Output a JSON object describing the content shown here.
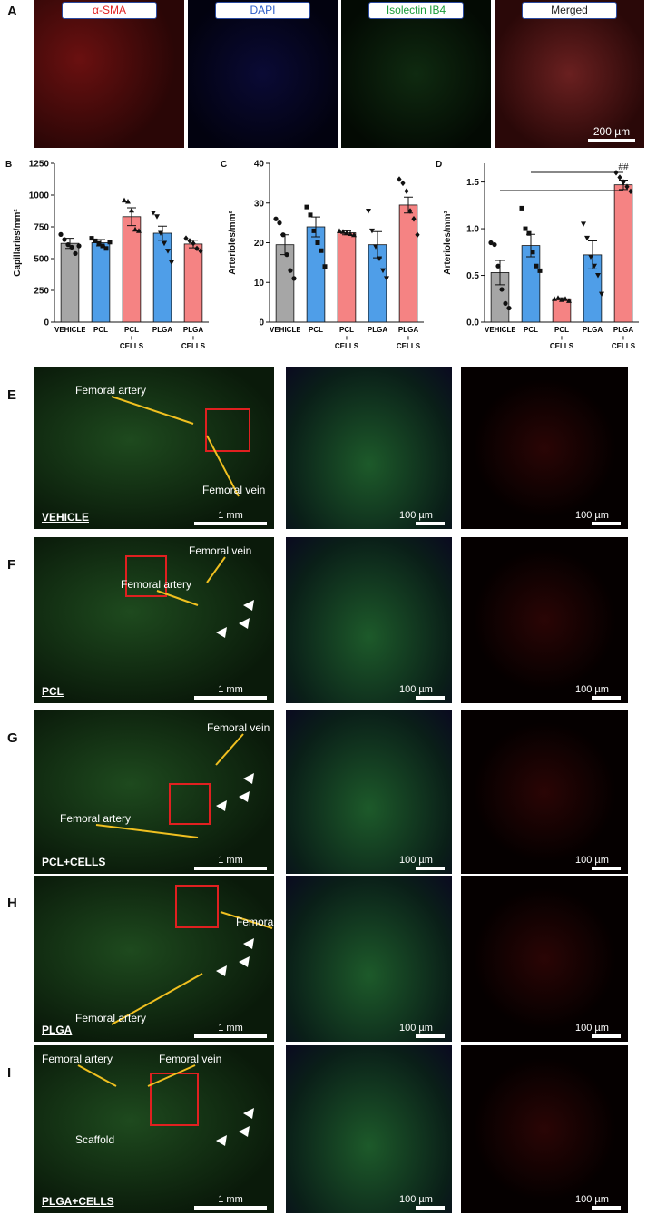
{
  "panel_a": {
    "letter": "A",
    "labels": [
      "α-SMA",
      "DAPI",
      "Isolectin IB4",
      "Merged"
    ],
    "label_colors": [
      "#e02020",
      "#2c5cc8",
      "#1a9c3a",
      "#222222"
    ],
    "scale_bar": "200 µm"
  },
  "chart_data": [
    {
      "type": "bar",
      "letter": "B",
      "y_label": "Capillaries/mm²",
      "categories": [
        "VEHICLE",
        "PCL",
        "PCL + CELLS",
        "PLGA",
        "PLGA + CELLS"
      ],
      "values": [
        620,
        625,
        830,
        700,
        615
      ],
      "errors": [
        40,
        25,
        70,
        55,
        30
      ],
      "points": [
        [
          690,
          650,
          610,
          590,
          540,
          600
        ],
        [
          660,
          640,
          620,
          600,
          580,
          630
        ],
        [
          960,
          950,
          880,
          730,
          720
        ],
        [
          860,
          830,
          700,
          620,
          560,
          470
        ],
        [
          660,
          640,
          620,
          580,
          560
        ]
      ],
      "colors": [
        "#a6a6a6",
        "#4f9ee8",
        "#f58383",
        "#4f9ee8",
        "#f58383"
      ],
      "ylim": [
        0,
        1250
      ],
      "yticks": [
        0,
        250,
        500,
        750,
        1000,
        1250
      ]
    },
    {
      "type": "bar",
      "letter": "C",
      "y_label": "Arterioles/mm²",
      "categories": [
        "VEHICLE",
        "PCL",
        "PCL + CELLS",
        "PLGA",
        "PLGA + CELLS"
      ],
      "values": [
        19.5,
        24,
        22.5,
        19.5,
        29.5
      ],
      "errors": [
        2.5,
        2.5,
        0.5,
        3.3,
        2
      ],
      "points": [
        [
          26,
          25,
          22,
          17,
          13,
          11
        ],
        [
          29,
          27,
          23,
          20,
          18,
          14
        ],
        [
          23,
          22.8,
          22.5,
          22.3,
          22
        ],
        [
          28,
          23,
          19,
          16,
          13,
          11
        ],
        [
          36,
          35,
          33,
          28,
          26,
          22
        ]
      ],
      "colors": [
        "#a6a6a6",
        "#4f9ee8",
        "#f58383",
        "#4f9ee8",
        "#f58383"
      ],
      "ylim": [
        0,
        40
      ],
      "yticks": [
        0,
        10,
        20,
        30,
        40
      ]
    },
    {
      "type": "bar",
      "letter": "D",
      "y_label": "Arterioles/mm²",
      "categories": [
        "VEHICLE",
        "PCL",
        "PCL + CELLS",
        "PLGA",
        "PLGA + CELLS"
      ],
      "values": [
        0.53,
        0.82,
        0.25,
        0.72,
        1.47
      ],
      "errors": [
        0.13,
        0.12,
        0.01,
        0.15,
        0.05
      ],
      "points": [
        [
          0.85,
          0.83,
          0.6,
          0.35,
          0.2,
          0.15
        ],
        [
          1.22,
          1.0,
          0.95,
          0.75,
          0.6,
          0.55
        ],
        [
          0.25,
          0.26,
          0.24,
          0.25,
          0.23
        ],
        [
          1.05,
          0.9,
          0.7,
          0.6,
          0.5,
          0.3
        ],
        [
          1.6,
          1.55,
          1.5,
          1.45,
          1.4
        ]
      ],
      "colors": [
        "#a6a6a6",
        "#4f9ee8",
        "#f58383",
        "#4f9ee8",
        "#f58383"
      ],
      "ylim": [
        0,
        1.7
      ],
      "yticks": [
        {
          "value": 0,
          "label": "0.0"
        },
        0.5,
        {
          "value": 1,
          "label": "1.0"
        },
        1.5
      ],
      "significance": [
        "##",
        "*"
      ]
    }
  ],
  "rows": [
    {
      "letter": "E",
      "condition": "VEHICLE",
      "annotations": [
        "Femoral artery",
        "Femoral vein"
      ],
      "scale_bars": [
        "1 mm",
        "100 µm",
        "100 µm"
      ]
    },
    {
      "letter": "F",
      "condition": "PCL",
      "annotations": [
        "Femoral vein",
        "Femoral artery"
      ],
      "scale_bars": [
        "1 mm",
        "100 µm",
        "100 µm"
      ]
    },
    {
      "letter": "G",
      "condition": "PCL+CELLS",
      "annotations": [
        "Femoral vein",
        "Femoral artery"
      ],
      "scale_bars": [
        "1 mm",
        "100 µm",
        "100 µm"
      ]
    },
    {
      "letter": "H",
      "condition": "PLGA",
      "annotations": [
        "Femoral vein",
        "Femoral artery"
      ],
      "scale_bars": [
        "1 mm",
        "100 µm",
        "100 µm"
      ]
    },
    {
      "letter": "I",
      "condition": "PLGA+CELLS",
      "annotations": [
        "Femoral artery",
        "Femoral vein",
        "Scaffold"
      ],
      "scale_bars": [
        "1 mm",
        "100 µm",
        "100 µm"
      ]
    }
  ]
}
